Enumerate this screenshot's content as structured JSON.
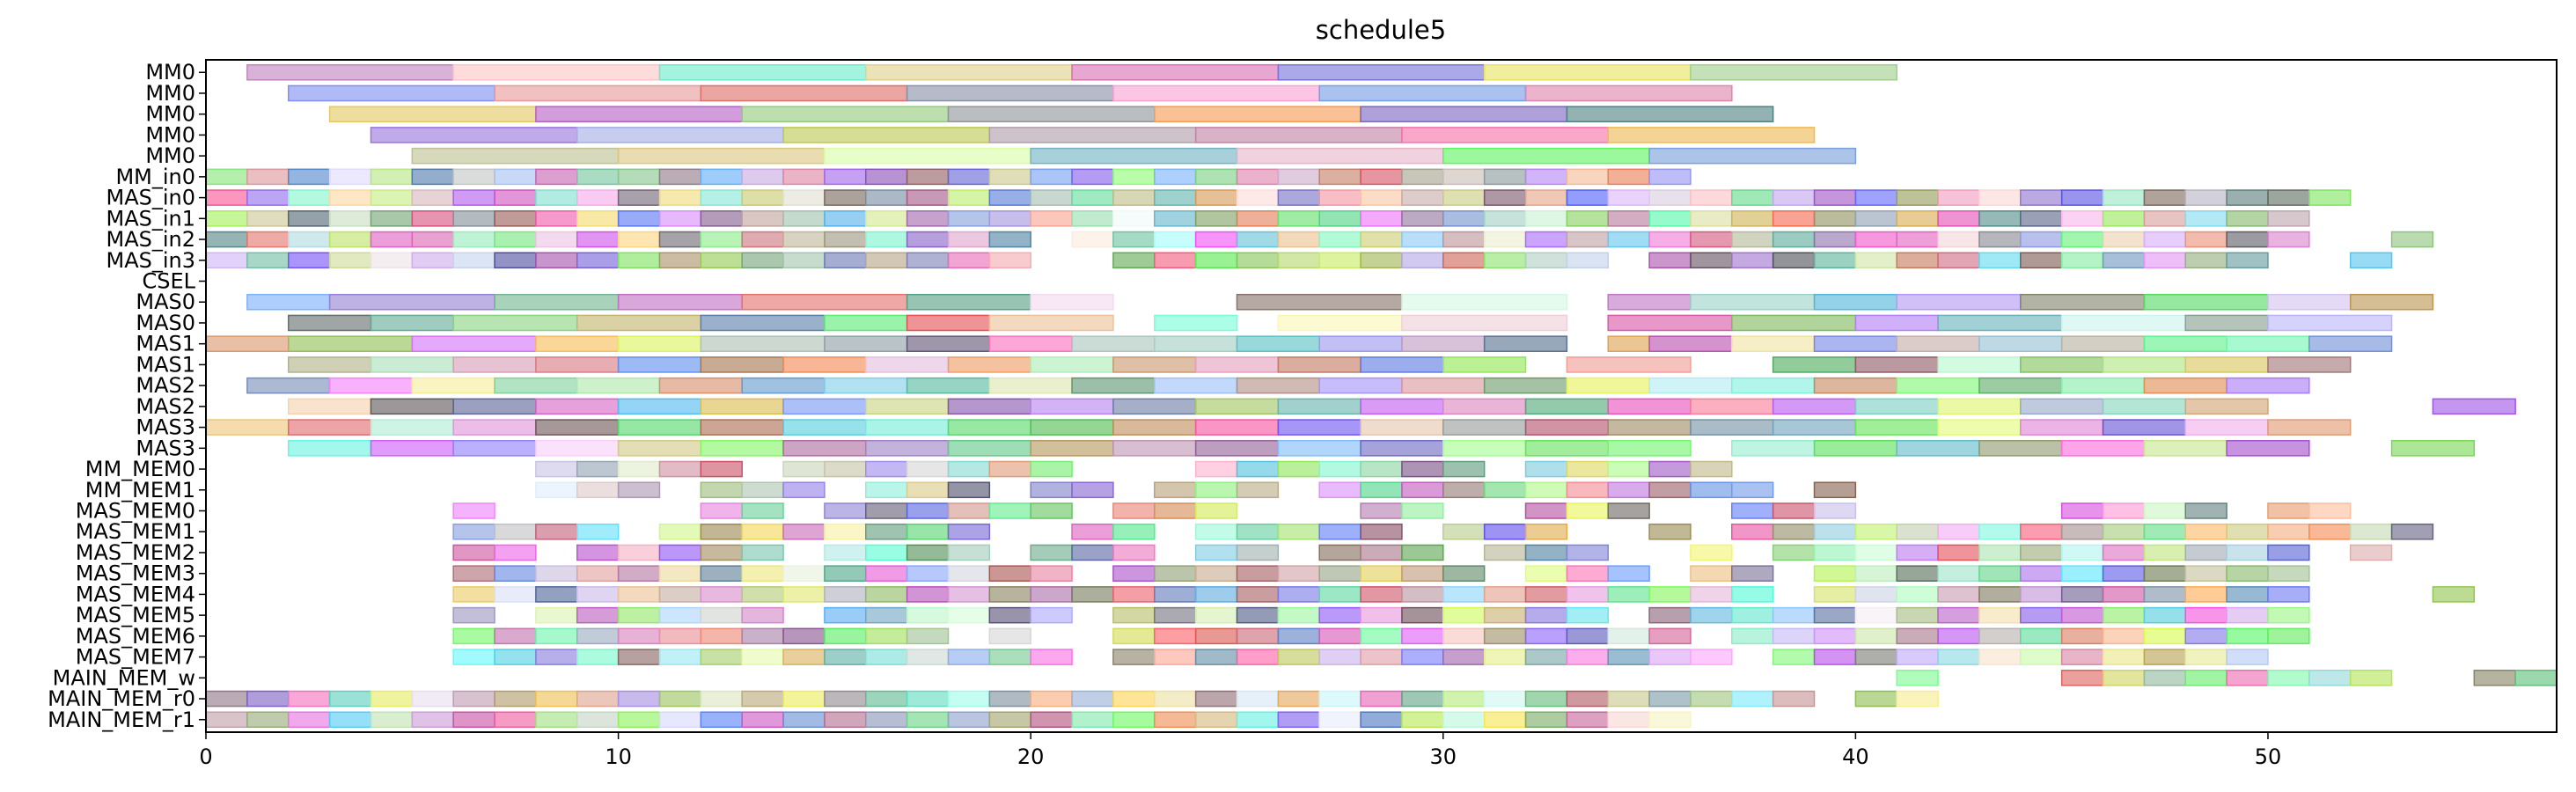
{
  "chart_data": {
    "type": "gantt",
    "title": "schedule5",
    "xlabel": "",
    "ylabel": "",
    "xlim": [
      0,
      57
    ],
    "x_ticks": [
      0,
      10,
      20,
      30,
      40,
      50
    ],
    "rows": [
      {
        "label": "MM0",
        "bars": [
          [
            1,
            6
          ],
          [
            6,
            11
          ],
          [
            11,
            16
          ],
          [
            16,
            21
          ],
          [
            21,
            26
          ],
          [
            26,
            31
          ],
          [
            31,
            36
          ],
          [
            36,
            41
          ]
        ]
      },
      {
        "label": "MM0",
        "bars": [
          [
            2,
            7
          ],
          [
            7,
            12
          ],
          [
            12,
            17
          ],
          [
            17,
            22
          ],
          [
            22,
            27
          ],
          [
            27,
            32
          ],
          [
            32,
            37
          ]
        ]
      },
      {
        "label": "MM0",
        "bars": [
          [
            3,
            8
          ],
          [
            8,
            13
          ],
          [
            13,
            18
          ],
          [
            18,
            23
          ],
          [
            23,
            28
          ],
          [
            28,
            33
          ],
          [
            33,
            38
          ]
        ]
      },
      {
        "label": "MM0",
        "bars": [
          [
            4,
            9
          ],
          [
            9,
            14
          ],
          [
            14,
            19
          ],
          [
            19,
            24
          ],
          [
            24,
            29
          ],
          [
            29,
            34
          ],
          [
            34,
            39
          ]
        ]
      },
      {
        "label": "MM0",
        "bars": [
          [
            5,
            10
          ],
          [
            10,
            15
          ],
          [
            15,
            20
          ],
          [
            20,
            25
          ],
          [
            25,
            30
          ],
          [
            30,
            35
          ],
          [
            35,
            40
          ]
        ]
      },
      {
        "label": "MM_in0",
        "segments": [
          [
            0,
            36
          ]
        ]
      },
      {
        "label": "MAS_in0",
        "segments": [
          [
            0,
            52
          ]
        ]
      },
      {
        "label": "MAS_in1",
        "segments": [
          [
            0,
            51
          ]
        ]
      },
      {
        "label": "MAS_in2",
        "segments": [
          [
            0,
            20
          ],
          [
            21,
            51
          ],
          [
            53,
            54
          ]
        ]
      },
      {
        "label": "MAS_in3",
        "segments": [
          [
            0,
            20
          ],
          [
            22,
            34
          ],
          [
            35,
            50
          ],
          [
            52,
            53
          ]
        ]
      },
      {
        "label": "CSEL",
        "segments": []
      },
      {
        "label": "MAS0",
        "bars": [
          [
            1,
            3
          ],
          [
            3,
            7
          ],
          [
            7,
            10
          ],
          [
            10,
            13
          ],
          [
            13,
            17
          ],
          [
            17,
            20
          ],
          [
            20,
            22
          ],
          [
            25,
            29
          ],
          [
            29,
            33
          ],
          [
            34,
            36
          ],
          [
            36,
            39
          ],
          [
            39,
            41
          ],
          [
            41,
            44
          ],
          [
            44,
            47
          ],
          [
            47,
            50
          ],
          [
            50,
            52
          ],
          [
            52,
            54
          ]
        ]
      },
      {
        "label": "MAS0",
        "bars": [
          [
            2,
            4
          ],
          [
            4,
            6
          ],
          [
            6,
            9
          ],
          [
            9,
            12
          ],
          [
            12,
            15
          ],
          [
            15,
            17
          ],
          [
            17,
            19
          ],
          [
            19,
            22
          ],
          [
            23,
            25
          ],
          [
            26,
            29
          ],
          [
            29,
            33
          ],
          [
            34,
            37
          ],
          [
            37,
            40
          ],
          [
            40,
            42
          ],
          [
            42,
            45
          ],
          [
            45,
            48
          ],
          [
            48,
            50
          ],
          [
            50,
            53
          ]
        ]
      },
      {
        "label": "MAS1",
        "bars": [
          [
            0,
            2
          ],
          [
            2,
            5
          ],
          [
            5,
            8
          ],
          [
            8,
            10
          ],
          [
            10,
            12
          ],
          [
            12,
            15
          ],
          [
            15,
            17
          ],
          [
            17,
            19
          ],
          [
            19,
            21
          ],
          [
            21,
            23
          ],
          [
            23,
            25
          ],
          [
            25,
            27
          ],
          [
            27,
            29
          ],
          [
            29,
            31
          ],
          [
            31,
            33
          ],
          [
            34,
            35
          ],
          [
            35,
            37
          ],
          [
            37,
            39
          ],
          [
            39,
            41
          ],
          [
            41,
            43
          ],
          [
            43,
            45
          ],
          [
            45,
            47
          ],
          [
            47,
            49
          ],
          [
            49,
            51
          ],
          [
            51,
            53
          ]
        ]
      },
      {
        "label": "MAS1",
        "bars": [
          [
            2,
            4
          ],
          [
            4,
            6
          ],
          [
            6,
            8
          ],
          [
            8,
            10
          ],
          [
            10,
            12
          ],
          [
            12,
            14
          ],
          [
            14,
            16
          ],
          [
            16,
            18
          ],
          [
            18,
            20
          ],
          [
            20,
            22
          ],
          [
            22,
            24
          ],
          [
            24,
            26
          ],
          [
            26,
            28
          ],
          [
            28,
            30
          ],
          [
            30,
            32
          ],
          [
            33,
            36
          ],
          [
            38,
            40
          ],
          [
            40,
            42
          ],
          [
            42,
            44
          ],
          [
            44,
            46
          ],
          [
            46,
            48
          ],
          [
            48,
            50
          ],
          [
            50,
            52
          ]
        ]
      },
      {
        "label": "MAS2",
        "bars": [
          [
            1,
            3
          ],
          [
            3,
            5
          ],
          [
            5,
            7
          ],
          [
            7,
            9
          ],
          [
            9,
            11
          ],
          [
            11,
            13
          ],
          [
            13,
            15
          ],
          [
            15,
            17
          ],
          [
            17,
            19
          ],
          [
            19,
            21
          ],
          [
            21,
            23
          ],
          [
            23,
            25
          ],
          [
            25,
            27
          ],
          [
            27,
            29
          ],
          [
            29,
            31
          ],
          [
            31,
            33
          ],
          [
            33,
            35
          ],
          [
            35,
            37
          ],
          [
            37,
            39
          ],
          [
            39,
            41
          ],
          [
            41,
            43
          ],
          [
            43,
            45
          ],
          [
            45,
            47
          ],
          [
            47,
            49
          ],
          [
            49,
            51
          ]
        ]
      },
      {
        "label": "MAS2",
        "bars": [
          [
            2,
            4
          ],
          [
            4,
            6
          ],
          [
            6,
            8
          ],
          [
            8,
            10
          ],
          [
            10,
            12
          ],
          [
            12,
            14
          ],
          [
            14,
            16
          ],
          [
            16,
            18
          ],
          [
            18,
            20
          ],
          [
            20,
            22
          ],
          [
            22,
            24
          ],
          [
            24,
            26
          ],
          [
            26,
            28
          ],
          [
            28,
            30
          ],
          [
            30,
            32
          ],
          [
            32,
            34
          ],
          [
            34,
            36
          ],
          [
            36,
            38
          ],
          [
            38,
            40
          ],
          [
            40,
            42
          ],
          [
            42,
            44
          ],
          [
            44,
            46
          ],
          [
            46,
            48
          ],
          [
            48,
            50
          ],
          [
            54,
            56
          ]
        ]
      },
      {
        "label": "MAS3",
        "bars": [
          [
            0,
            2
          ],
          [
            2,
            4
          ],
          [
            4,
            6
          ],
          [
            6,
            8
          ],
          [
            8,
            10
          ],
          [
            10,
            12
          ],
          [
            12,
            14
          ],
          [
            14,
            16
          ],
          [
            16,
            18
          ],
          [
            18,
            20
          ],
          [
            20,
            22
          ],
          [
            22,
            24
          ],
          [
            24,
            26
          ],
          [
            26,
            28
          ],
          [
            28,
            30
          ],
          [
            30,
            32
          ],
          [
            32,
            34
          ],
          [
            34,
            36
          ],
          [
            36,
            38
          ],
          [
            38,
            40
          ],
          [
            40,
            42
          ],
          [
            42,
            44
          ],
          [
            44,
            46
          ],
          [
            46,
            48
          ],
          [
            48,
            50
          ],
          [
            50,
            52
          ]
        ]
      },
      {
        "label": "MAS3",
        "bars": [
          [
            2,
            4
          ],
          [
            4,
            6
          ],
          [
            6,
            8
          ],
          [
            8,
            10
          ],
          [
            10,
            12
          ],
          [
            12,
            14
          ],
          [
            14,
            16
          ],
          [
            16,
            18
          ],
          [
            18,
            20
          ],
          [
            20,
            22
          ],
          [
            22,
            24
          ],
          [
            24,
            26
          ],
          [
            26,
            28
          ],
          [
            28,
            30
          ],
          [
            30,
            32
          ],
          [
            32,
            34
          ],
          [
            34,
            36
          ],
          [
            37,
            39
          ],
          [
            39,
            41
          ],
          [
            41,
            43
          ],
          [
            43,
            45
          ],
          [
            45,
            47
          ],
          [
            47,
            49
          ],
          [
            49,
            51
          ],
          [
            53,
            55
          ]
        ]
      },
      {
        "label": "MM_MEM0",
        "segments": [
          [
            8,
            13
          ],
          [
            14,
            21
          ],
          [
            24,
            31
          ],
          [
            32,
            37
          ]
        ]
      },
      {
        "label": "MM_MEM1",
        "segments": [
          [
            8,
            11
          ],
          [
            12,
            15
          ],
          [
            16,
            19
          ],
          [
            20,
            22
          ],
          [
            23,
            26
          ],
          [
            27,
            38
          ],
          [
            39,
            40
          ]
        ]
      },
      {
        "label": "MAS_MEM0",
        "segments": [
          [
            6,
            7
          ],
          [
            12,
            14
          ],
          [
            15,
            21
          ],
          [
            22,
            25
          ],
          [
            28,
            30
          ],
          [
            32,
            35
          ],
          [
            37,
            40
          ],
          [
            45,
            49
          ],
          [
            50,
            52
          ]
        ]
      },
      {
        "label": "MAS_MEM1",
        "segments": [
          [
            6,
            10
          ],
          [
            11,
            19
          ],
          [
            21,
            23
          ],
          [
            24,
            29
          ],
          [
            30,
            33
          ],
          [
            35,
            36
          ],
          [
            37,
            51
          ],
          [
            51,
            54
          ]
        ]
      },
      {
        "label": "MAS_MEM2",
        "segments": [
          [
            6,
            8
          ],
          [
            9,
            14
          ],
          [
            15,
            19
          ],
          [
            20,
            23
          ],
          [
            24,
            26
          ],
          [
            27,
            30
          ],
          [
            31,
            34
          ],
          [
            36,
            37
          ],
          [
            38,
            51
          ],
          [
            52,
            53
          ]
        ]
      },
      {
        "label": "MAS_MEM3",
        "segments": [
          [
            6,
            21
          ],
          [
            22,
            31
          ],
          [
            32,
            35
          ],
          [
            36,
            38
          ],
          [
            39,
            51
          ]
        ]
      },
      {
        "label": "MAS_MEM4",
        "segments": [
          [
            6,
            38
          ],
          [
            39,
            51
          ],
          [
            54,
            55
          ]
        ]
      },
      {
        "label": "MAS_MEM5",
        "segments": [
          [
            6,
            7
          ],
          [
            8,
            14
          ],
          [
            15,
            21
          ],
          [
            22,
            34
          ],
          [
            35,
            51
          ]
        ]
      },
      {
        "label": "MAS_MEM6",
        "segments": [
          [
            6,
            18
          ],
          [
            19,
            20
          ],
          [
            22,
            36
          ],
          [
            37,
            51
          ]
        ]
      },
      {
        "label": "MAS_MEM7",
        "segments": [
          [
            6,
            21
          ],
          [
            22,
            37
          ],
          [
            38,
            50
          ]
        ]
      },
      {
        "label": "MAIN_MEM_w",
        "segments": [
          [
            41,
            42
          ],
          [
            45,
            53
          ],
          [
            55,
            57
          ]
        ]
      },
      {
        "label": "MAIN_MEM_r0",
        "segments": [
          [
            0,
            39
          ],
          [
            40,
            42
          ]
        ]
      },
      {
        "label": "MAIN_MEM_r1",
        "segments": [
          [
            0,
            36
          ]
        ]
      }
    ]
  }
}
